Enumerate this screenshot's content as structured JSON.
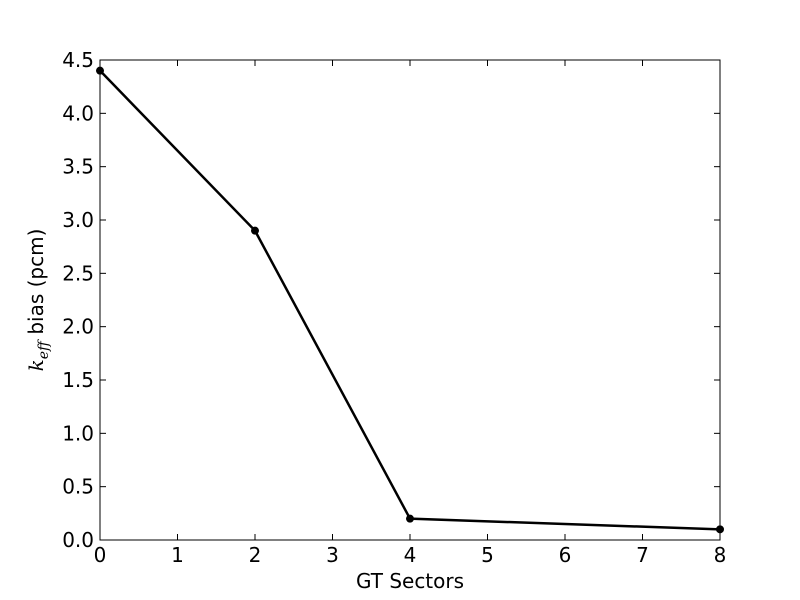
{
  "chart_data": {
    "type": "line",
    "title": "",
    "xlabel": "GT Sectors",
    "ylabel": {
      "symbol": "k",
      "subscript": "eff",
      "suffix": " bias (pcm)"
    },
    "xlim": [
      0,
      8
    ],
    "ylim": [
      0,
      4.5
    ],
    "xticks": [
      0,
      1,
      2,
      3,
      4,
      5,
      6,
      7,
      8
    ],
    "xtick_labels": [
      "0",
      "1",
      "2",
      "3",
      "4",
      "5",
      "6",
      "7",
      "8"
    ],
    "yticks": [
      0,
      0.5,
      1,
      1.5,
      2,
      2.5,
      3,
      3.5,
      4,
      4.5
    ],
    "ytick_labels": [
      "0.0",
      "0.5",
      "1.0",
      "1.5",
      "2.0",
      "2.5",
      "3.0",
      "3.5",
      "4.0",
      "4.5"
    ],
    "grid": false,
    "legend": "none",
    "series": [
      {
        "x": [
          0,
          2,
          4,
          8
        ],
        "y": [
          4.4,
          2.9,
          0.2,
          0.1
        ],
        "color": "#000000",
        "marker": "circle"
      }
    ]
  }
}
